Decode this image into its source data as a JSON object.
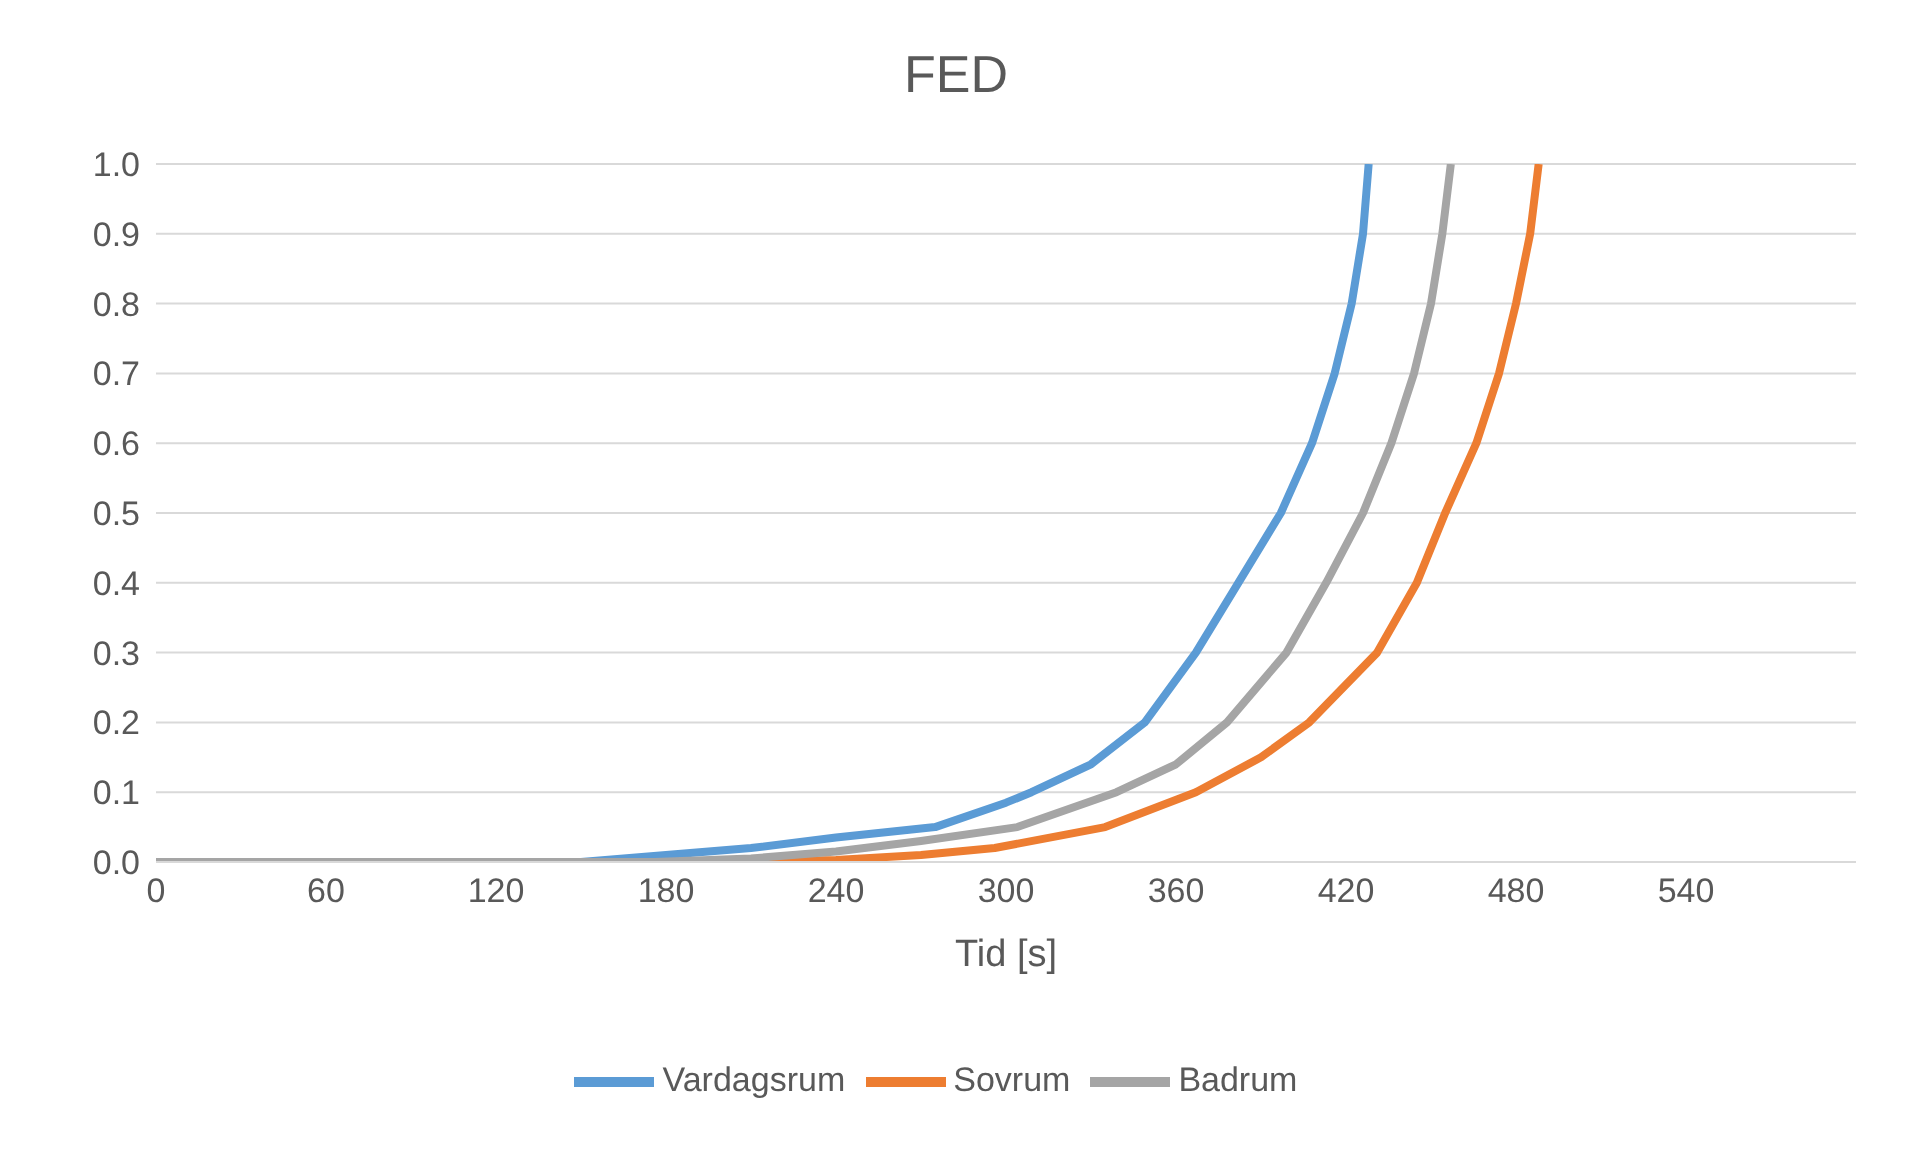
{
  "chart_data": {
    "type": "line",
    "title": "FED",
    "xlabel": "Tid [s]",
    "xlim": [
      0,
      600
    ],
    "xticks": [
      0,
      60,
      120,
      180,
      240,
      300,
      360,
      420,
      480,
      540
    ],
    "ylim": [
      0,
      1
    ],
    "yticks": [
      {
        "value": 0,
        "label": "0.0"
      },
      {
        "value": 0.1,
        "label": "0.1"
      },
      {
        "value": 0.2,
        "label": "0.2"
      },
      {
        "value": 0.3,
        "label": "0.3"
      },
      {
        "value": 0.4,
        "label": "0.4"
      },
      {
        "value": 0.5,
        "label": "0.5"
      },
      {
        "value": 0.6,
        "label": "0.6"
      },
      {
        "value": 0.7,
        "label": "0.7"
      },
      {
        "value": 0.8,
        "label": "0.8"
      },
      {
        "value": 0.9,
        "label": "0.9"
      },
      {
        "value": 1,
        "label": "1.0"
      }
    ],
    "grid": "y",
    "legend": "bottom",
    "marker": "none",
    "line_style": "solid",
    "series": [
      {
        "name": "Vardagsrum",
        "color": "#5b9bd5",
        "x": [
          0,
          150,
          180,
          210,
          240,
          275,
          300,
          309,
          330,
          349,
          367,
          382,
          397,
          408,
          416,
          422,
          426,
          428
        ],
        "values": [
          0,
          0,
          0.01,
          0.02,
          0.035,
          0.05,
          0.085,
          0.1,
          0.14,
          0.2,
          0.3,
          0.4,
          0.5,
          0.6,
          0.7,
          0.8,
          0.9,
          1.0
        ]
      },
      {
        "name": "Sovrum",
        "color": "#ed7d31",
        "x": [
          0,
          212,
          240,
          270,
          296,
          335,
          367,
          390,
          407,
          431,
          445,
          455,
          466,
          474,
          480,
          485,
          488
        ],
        "values": [
          0,
          0,
          0.003,
          0.01,
          0.02,
          0.05,
          0.1,
          0.15,
          0.2,
          0.3,
          0.4,
          0.5,
          0.6,
          0.7,
          0.8,
          0.9,
          1.0
        ]
      },
      {
        "name": "Badrum",
        "color": "#a5a5a5",
        "x": [
          0,
          176,
          210,
          240,
          270,
          304,
          339,
          360,
          378,
          399,
          413,
          426,
          436,
          444,
          450,
          454,
          457
        ],
        "values": [
          0,
          0,
          0.005,
          0.015,
          0.03,
          0.05,
          0.1,
          0.14,
          0.2,
          0.3,
          0.4,
          0.5,
          0.6,
          0.7,
          0.8,
          0.9,
          1.0
        ]
      }
    ]
  }
}
